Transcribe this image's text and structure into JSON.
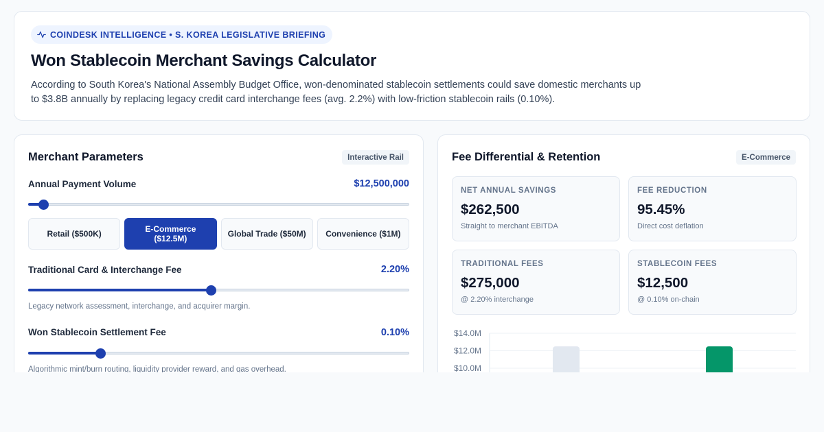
{
  "header": {
    "badge": "COINDESK INTELLIGENCE • S. KOREA LEGISLATIVE BRIEFING",
    "badge_icon": "activity-pulse-icon",
    "title": "Won Stablecoin Merchant Savings Calculator",
    "description": "According to South Korea's National Assembly Budget Office, won-denominated stablecoin settlements could save domestic merchants up to $3.8B annually by replacing legacy credit card interchange fees (avg. 2.2%) with low-friction stablecoin rails (0.10%)."
  },
  "parameters": {
    "title": "Merchant Parameters",
    "tag": "Interactive Rail",
    "volume": {
      "label": "Annual Payment Volume",
      "value": "$12,500,000",
      "level": 0.04
    },
    "presets": [
      {
        "label": "Retail ($500K)",
        "active": false
      },
      {
        "label": "E-Commerce ($12.5M)",
        "active": true
      },
      {
        "label": "Global Trade ($50M)",
        "active": false
      },
      {
        "label": "Convenience ($1M)",
        "active": false
      }
    ],
    "card_fee": {
      "label": "Traditional Card & Interchange Fee",
      "value": "2.20%",
      "hint": "Legacy network assessment, interchange, and acquirer margin.",
      "level": 0.48
    },
    "stable_fee": {
      "label": "Won Stablecoin Settlement Fee",
      "value": "0.10%",
      "hint": "Algorithmic mint/burn routing, liquidity provider reward, and gas overhead.",
      "level": 0.19
    }
  },
  "results": {
    "title": "Fee Differential & Retention",
    "tag": "E-Commerce",
    "stats": [
      {
        "label": "NET ANNUAL SAVINGS",
        "value": "$262,500",
        "sub": "Straight to merchant EBITDA",
        "tone": "green"
      },
      {
        "label": "FEE REDUCTION",
        "value": "95.45%",
        "sub": "Direct cost deflation",
        "tone": "blue"
      },
      {
        "label": "TRADITIONAL FEES",
        "value": "$275,000",
        "sub": "@ 2.20% interchange",
        "tone": "neutral"
      },
      {
        "label": "STABLECOIN FEES",
        "value": "$12,500",
        "sub": "@ 0.10% on-chain",
        "tone": "neutral"
      }
    ]
  },
  "chart_data": {
    "type": "bar",
    "y_ticks": [
      "$14.0M",
      "$12.0M",
      "$10.0M"
    ],
    "ylim": [
      0,
      14
    ],
    "values": [
      12.5,
      12.5
    ],
    "colors": [
      "#e2e8f0",
      "#059669"
    ],
    "grid": true
  }
}
